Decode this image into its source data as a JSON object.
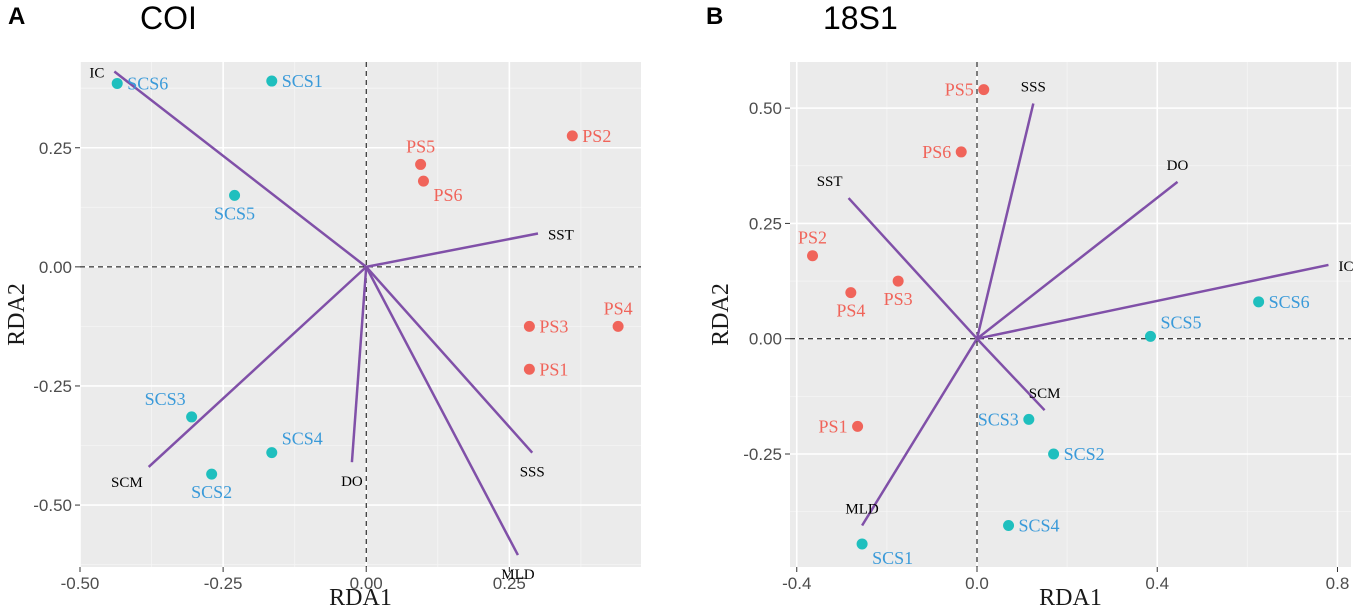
{
  "chart_data": [
    {
      "type": "scatter",
      "panel": "A",
      "title": "COI",
      "xlabel": "RDA1",
      "ylabel": "RDA2",
      "xlim": [
        -0.5,
        0.48
      ],
      "ylim": [
        -0.63,
        0.43
      ],
      "xticks": [
        -0.5,
        -0.25,
        0.0,
        0.25
      ],
      "xtick_labels": [
        "-0.50",
        "-0.25",
        "0.00",
        "0.25"
      ],
      "yticks": [
        -0.5,
        -0.25,
        0.0,
        0.25
      ],
      "ytick_labels": [
        "-0.50",
        "-0.25",
        "0.00",
        "0.25"
      ],
      "series": [
        {
          "name": "PS",
          "color": "#f0645a",
          "points": [
            {
              "label": "PS2",
              "x": 0.36,
              "y": 0.275,
              "pos": "right"
            },
            {
              "label": "PS5",
              "x": 0.095,
              "y": 0.215,
              "pos": "top"
            },
            {
              "label": "PS6",
              "x": 0.1,
              "y": 0.18,
              "pos": "right-below"
            },
            {
              "label": "PS3",
              "x": 0.285,
              "y": -0.125,
              "pos": "right"
            },
            {
              "label": "PS4",
              "x": 0.44,
              "y": -0.125,
              "pos": "top"
            },
            {
              "label": "PS1",
              "x": 0.285,
              "y": -0.215,
              "pos": "right"
            }
          ]
        },
        {
          "name": "SCS",
          "color": "#1fbfbe",
          "label_color": "#3a9ad9",
          "points": [
            {
              "label": "SCS6",
              "x": -0.435,
              "y": 0.385,
              "pos": "right"
            },
            {
              "label": "SCS1",
              "x": -0.165,
              "y": 0.39,
              "pos": "right"
            },
            {
              "label": "SCS5",
              "x": -0.23,
              "y": 0.15,
              "pos": "below"
            },
            {
              "label": "SCS3",
              "x": -0.305,
              "y": -0.315,
              "pos": "top-left"
            },
            {
              "label": "SCS4",
              "x": -0.165,
              "y": -0.39,
              "pos": "right-top"
            },
            {
              "label": "SCS2",
              "x": -0.27,
              "y": -0.435,
              "pos": "below"
            }
          ]
        }
      ],
      "vectors": [
        {
          "label": "IC",
          "x": -0.44,
          "y": 0.41,
          "pos": "left"
        },
        {
          "label": "SST",
          "x": 0.3,
          "y": 0.07,
          "pos": "right"
        },
        {
          "label": "SCM",
          "x": -0.38,
          "y": -0.42,
          "pos": "below-left"
        },
        {
          "label": "DO",
          "x": -0.025,
          "y": -0.41,
          "pos": "below"
        },
        {
          "label": "SSS",
          "x": 0.29,
          "y": -0.39,
          "pos": "below"
        },
        {
          "label": "MLD",
          "x": 0.265,
          "y": -0.605,
          "pos": "below"
        }
      ],
      "vector_color": "#8050a8"
    },
    {
      "type": "scatter",
      "panel": "B",
      "title": "18S1",
      "xlabel": "RDA1",
      "ylabel": "RDA2",
      "xlim": [
        -0.415,
        0.83
      ],
      "ylim": [
        -0.495,
        0.6
      ],
      "xticks": [
        -0.4,
        0.0,
        0.4,
        0.8
      ],
      "xtick_labels": [
        "-0.4",
        "0.0",
        "0.4",
        "0.8"
      ],
      "yticks": [
        -0.25,
        0.0,
        0.25,
        0.5
      ],
      "ytick_labels": [
        "-0.25",
        "0.00",
        "0.25",
        "0.50"
      ],
      "series": [
        {
          "name": "PS",
          "color": "#f0645a",
          "points": [
            {
              "label": "PS5",
              "x": 0.015,
              "y": 0.54,
              "pos": "left"
            },
            {
              "label": "PS6",
              "x": -0.035,
              "y": 0.405,
              "pos": "left"
            },
            {
              "label": "PS2",
              "x": -0.365,
              "y": 0.18,
              "pos": "top"
            },
            {
              "label": "PS4",
              "x": -0.28,
              "y": 0.1,
              "pos": "below"
            },
            {
              "label": "PS3",
              "x": -0.175,
              "y": 0.125,
              "pos": "below"
            },
            {
              "label": "PS1",
              "x": -0.265,
              "y": -0.19,
              "pos": "left"
            }
          ]
        },
        {
          "name": "SCS",
          "color": "#1fbfbe",
          "label_color": "#3a9ad9",
          "points": [
            {
              "label": "SCS6",
              "x": 0.625,
              "y": 0.08,
              "pos": "right"
            },
            {
              "label": "SCS5",
              "x": 0.385,
              "y": 0.005,
              "pos": "right-top"
            },
            {
              "label": "SCS3",
              "x": 0.115,
              "y": -0.175,
              "pos": "left"
            },
            {
              "label": "SCS2",
              "x": 0.17,
              "y": -0.25,
              "pos": "right"
            },
            {
              "label": "SCS4",
              "x": 0.07,
              "y": -0.405,
              "pos": "right"
            },
            {
              "label": "SCS1",
              "x": -0.255,
              "y": -0.445,
              "pos": "right-below"
            }
          ]
        }
      ],
      "vectors": [
        {
          "label": "SSS",
          "x": 0.125,
          "y": 0.51,
          "pos": "top"
        },
        {
          "label": "DO",
          "x": 0.445,
          "y": 0.34,
          "pos": "top"
        },
        {
          "label": "SST",
          "x": -0.285,
          "y": 0.305,
          "pos": "top-left"
        },
        {
          "label": "IC",
          "x": 0.78,
          "y": 0.16,
          "pos": "right"
        },
        {
          "label": "SCM",
          "x": 0.15,
          "y": -0.155,
          "pos": "top"
        },
        {
          "label": "MLD",
          "x": -0.255,
          "y": -0.405,
          "pos": "top"
        }
      ],
      "vector_color": "#8050a8"
    }
  ],
  "panels": {
    "a": {
      "letter": "A",
      "title": "COI"
    },
    "b": {
      "letter": "B",
      "title": "18S1"
    }
  }
}
